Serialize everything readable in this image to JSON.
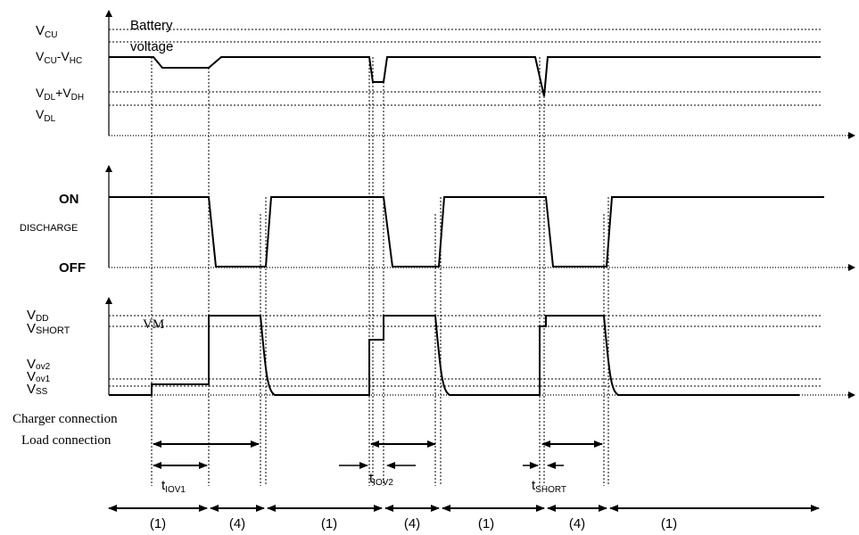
{
  "panel1": {
    "label_vcu": "V",
    "label_vcu_sub": "CU",
    "label_vcuvhc_a": "V",
    "label_vcuvhc_sub1": "CU",
    "label_vcuvhc_mid": "-V",
    "label_vcuvhc_sub2": "HC",
    "label_vdlvdh_a": "V",
    "label_vdlvdh_sub1": "DL",
    "label_vdlvdh_mid": "+V",
    "label_vdlvdh_sub2": "DH",
    "label_vdl": "V",
    "label_vdl_sub": "DL",
    "trace_title_line1": "Battery",
    "trace_title_line2": "voltage"
  },
  "panel2": {
    "label_on": "ON",
    "label_discharge": "DISCHARGE",
    "label_off": "OFF"
  },
  "panel3": {
    "label_vdd": "V",
    "label_vdd_sub": "DD",
    "label_vshort": "V",
    "label_vshort_sub": "SHORT",
    "label_vm": "VM",
    "label_vov2": "V",
    "label_vov2_sub": "ov2",
    "label_vov1": "V",
    "label_vov1_sub": "ov1",
    "label_vss": "V",
    "label_vss_sub": "SS"
  },
  "events": {
    "charger_connection": "Charger connection",
    "load_connection": "Load connection",
    "tiov1_t": "t",
    "tiov1_sub": "IOV1",
    "tiov2_t": "t",
    "tiov2_sub": "IOV2",
    "tshort_t": "t",
    "tshort_sub": "SHORT"
  },
  "modes": [
    "(1)",
    "(4)",
    "(1)",
    "(4)",
    "(1)",
    "(4)",
    "(1)"
  ]
}
